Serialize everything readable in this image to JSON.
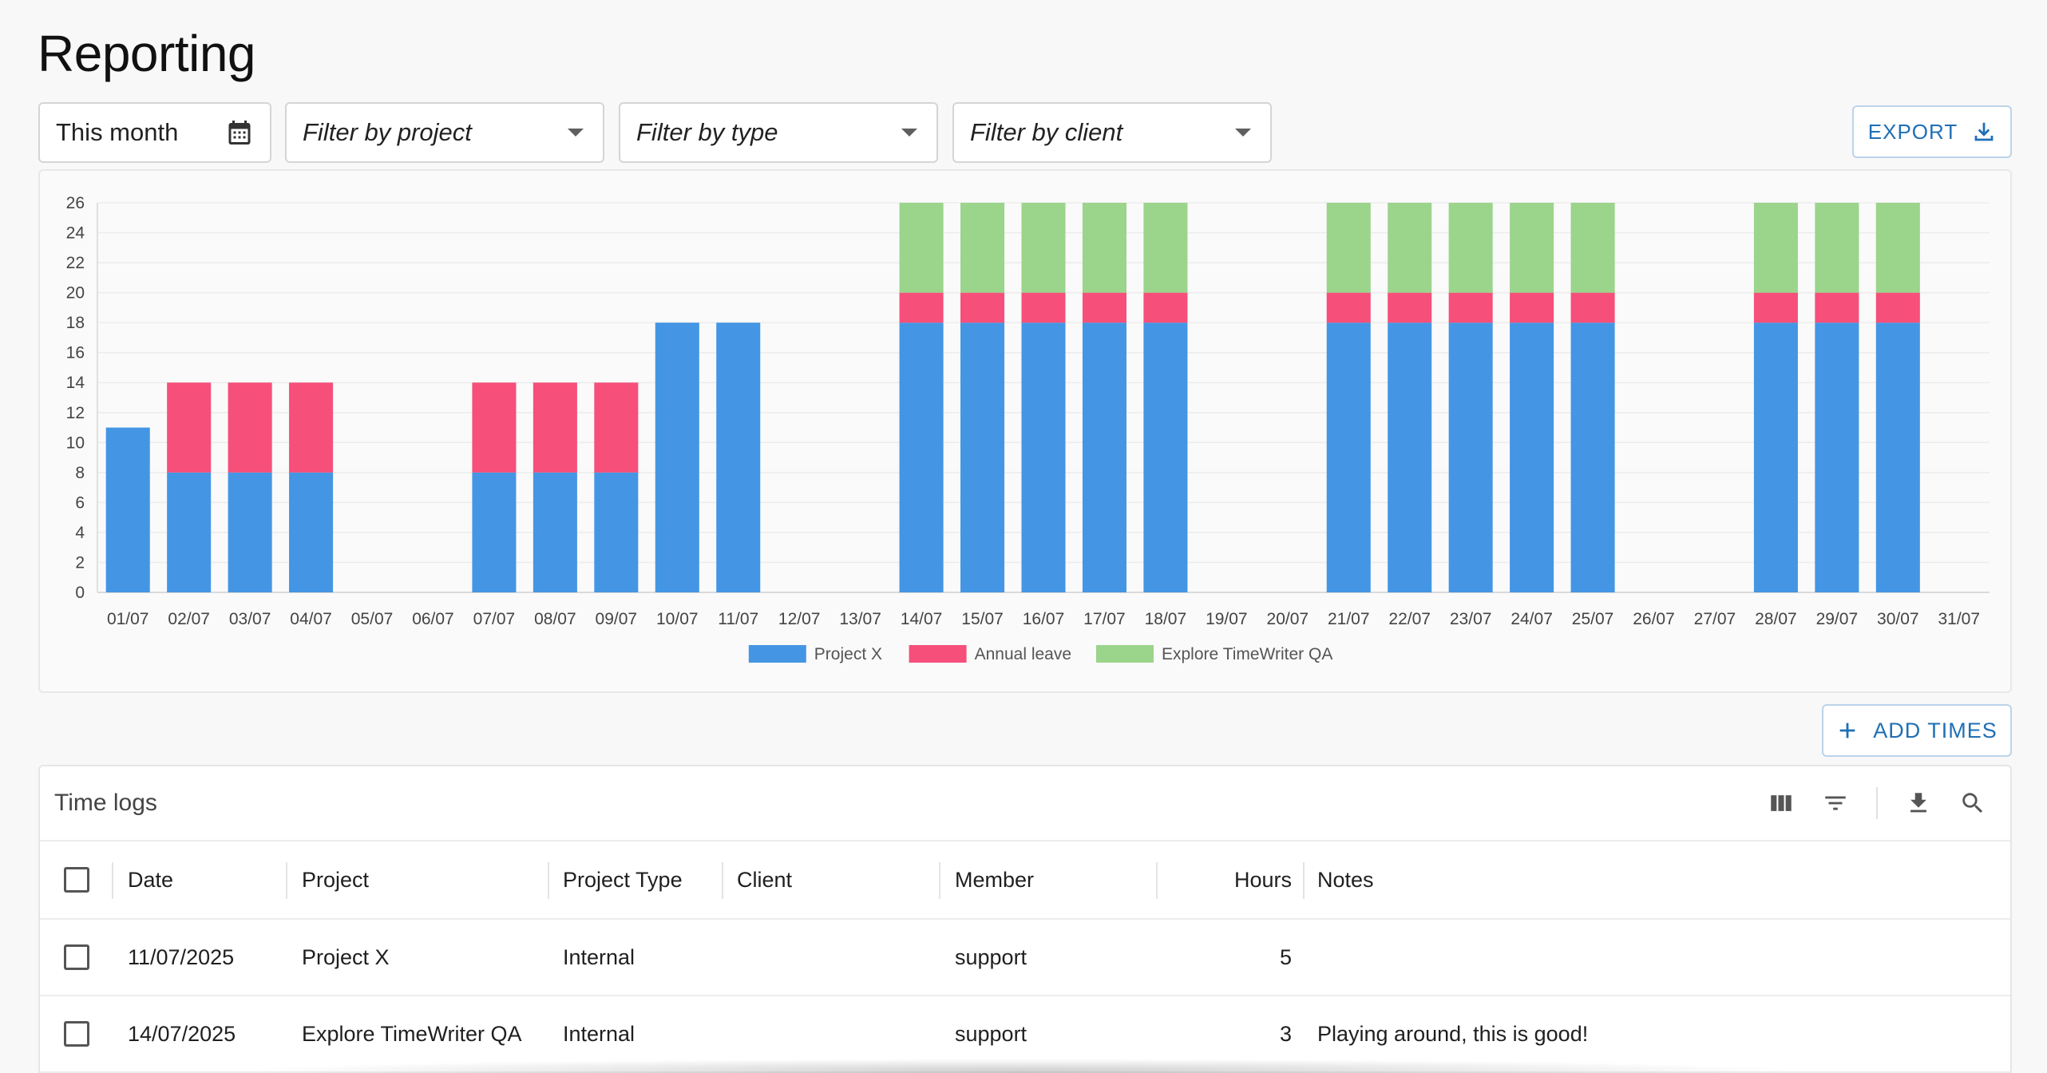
{
  "page": {
    "title": "Reporting"
  },
  "filters": {
    "date": "This month",
    "project_placeholder": "Filter by project",
    "type_placeholder": "Filter by type",
    "client_placeholder": "Filter by client"
  },
  "actions": {
    "export_label": "EXPORT",
    "add_times_label": "ADD TIMES"
  },
  "colors": {
    "project_x": "#4496e4",
    "annual_leave": "#f64f7a",
    "explore": "#9bd48b",
    "accent": "#1f6fb5"
  },
  "chart_data": {
    "type": "bar",
    "stacked": true,
    "categories": [
      "01/07",
      "02/07",
      "03/07",
      "04/07",
      "05/07",
      "06/07",
      "07/07",
      "08/07",
      "09/07",
      "10/07",
      "11/07",
      "12/07",
      "13/07",
      "14/07",
      "15/07",
      "16/07",
      "17/07",
      "18/07",
      "19/07",
      "20/07",
      "21/07",
      "22/07",
      "23/07",
      "24/07",
      "25/07",
      "26/07",
      "27/07",
      "28/07",
      "29/07",
      "30/07",
      "31/07"
    ],
    "series": [
      {
        "name": "Project X",
        "color": "#4496e4",
        "values": [
          11,
          8,
          8,
          8,
          0,
          0,
          8,
          8,
          8,
          18,
          18,
          0,
          0,
          18,
          18,
          18,
          18,
          18,
          0,
          0,
          18,
          18,
          18,
          18,
          18,
          0,
          0,
          18,
          18,
          18,
          0
        ]
      },
      {
        "name": "Annual leave",
        "color": "#f64f7a",
        "values": [
          0,
          6,
          6,
          6,
          0,
          0,
          6,
          6,
          6,
          0,
          0,
          0,
          0,
          2,
          2,
          2,
          2,
          2,
          0,
          0,
          2,
          2,
          2,
          2,
          2,
          0,
          0,
          2,
          2,
          2,
          0
        ]
      },
      {
        "name": "Explore TimeWriter QA",
        "color": "#9bd48b",
        "values": [
          0,
          0,
          0,
          0,
          0,
          0,
          0,
          0,
          0,
          0,
          0,
          0,
          0,
          6,
          6,
          6,
          6,
          6,
          0,
          0,
          6,
          6,
          6,
          6,
          6,
          0,
          0,
          6,
          6,
          6,
          0
        ]
      }
    ],
    "ylim": [
      0,
      26
    ],
    "yticks": [
      "0",
      "2",
      "4",
      "6",
      "8",
      "10",
      "12",
      "14",
      "16",
      "18",
      "20",
      "22",
      "24",
      "26"
    ],
    "grid": true,
    "legend": "bottom-center"
  },
  "table": {
    "title": "Time logs",
    "toolbar_icons": [
      "columns-icon",
      "filter-icon",
      "download-icon",
      "search-icon"
    ],
    "columns": [
      "Date",
      "Project",
      "Project Type",
      "Client",
      "Member",
      "Hours",
      "Notes"
    ],
    "rows": [
      {
        "date": "11/07/2025",
        "project": "Project X",
        "type": "Internal",
        "client": "",
        "member": "support",
        "hours": "5",
        "notes": ""
      },
      {
        "date": "14/07/2025",
        "project": "Explore TimeWriter QA",
        "type": "Internal",
        "client": "",
        "member": "support",
        "hours": "3",
        "notes": "Playing around, this is good!"
      }
    ]
  }
}
